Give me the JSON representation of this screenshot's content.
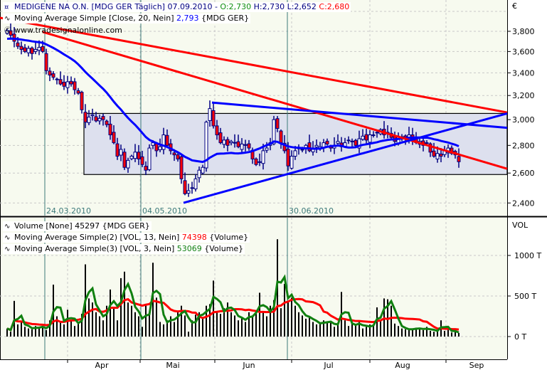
{
  "colors": {
    "background": "#f7faef",
    "up_body": "#ffffff",
    "down_body": "#ff0000",
    "candle_outline": "#000080",
    "ma20": "#0000ff",
    "trend_red": "#ff0000",
    "trend_blue": "#0000ff",
    "vol_ma13": "#ff0000",
    "vol_ma3": "#108010",
    "range_box": "#dde0ee",
    "marker_line": "#3d7a7a"
  },
  "header": {
    "symbol": "MEDIGENE NA O.N. [MDG GER  Täglich]",
    "date": "07.09.2010 -",
    "open": "O:2,730",
    "high": "H:2,730",
    "low": "L:2,652",
    "close": "C:2,680",
    "ma_label": "Moving Average Simple [Close, 20, Nein]",
    "ma_value": "2,793",
    "ma_suffix": "{MDG GER}",
    "watermark": "www.tradesignalonline.com"
  },
  "volume_legend": {
    "vol_label": "Volume [None] 45297 {MDG GER}",
    "ma13_label": "Moving Average Simple(2) [VOL, 13, Nein]",
    "ma13_value": "74398",
    "ma13_suffix": "{Volume}",
    "ma3_label": "Moving Average Simple(3) [VOL, 3, Nein]",
    "ma3_value": "53069",
    "ma3_suffix": "{Volume}"
  },
  "chart_data": [
    {
      "type": "candlestick",
      "title": "MEDIGENE NA O.N.",
      "ylabel": "€",
      "yscale": "log",
      "ylim": [
        2330,
        3960
      ],
      "yticks": [
        "3,800",
        "3,600",
        "3,400",
        "3,200",
        "3,000",
        "2,800",
        "2,600",
        "2,400"
      ],
      "ytick_values": [
        3800,
        3600,
        3400,
        3200,
        3000,
        2800,
        2600,
        2400
      ],
      "grid": true,
      "marker_dates": [
        "24.03.2010",
        "04.05.2010",
        "30.06.2010"
      ],
      "close": [
        3810,
        3760,
        3700,
        3650,
        3620,
        3600,
        3630,
        3580,
        3620,
        3640,
        3600,
        3420,
        3380,
        3360,
        3340,
        3300,
        3280,
        3320,
        3300,
        3250,
        3220,
        3080,
        2980,
        3020,
        3040,
        2990,
        3010,
        3000,
        2960,
        2880,
        2820,
        2720,
        2770,
        2640,
        2690,
        2720,
        2750,
        2700,
        2660,
        2620,
        2780,
        2820,
        2760,
        2790,
        2880,
        2800,
        2760,
        2730,
        2700,
        2560,
        2460,
        2480,
        2500,
        2560,
        2620,
        2640,
        2980,
        3090,
        2950,
        2880,
        2820,
        2840,
        2800,
        2830,
        2820,
        2790,
        2810,
        2800,
        2780,
        2700,
        2660,
        2680,
        2760,
        2780,
        2820,
        3000,
        2930,
        2820,
        2760,
        2650,
        2720,
        2760,
        2780,
        2770,
        2800,
        2760,
        2780,
        2800,
        2790,
        2820,
        2810,
        2780,
        2800,
        2830,
        2790,
        2820,
        2840,
        2830,
        2800,
        2850,
        2870,
        2840,
        2880,
        2880,
        2900,
        2920,
        2880,
        2900,
        2860,
        2830,
        2870,
        2860,
        2850,
        2880,
        2840,
        2820,
        2830,
        2800,
        2820,
        2750,
        2720,
        2740,
        2720,
        2760,
        2780,
        2740,
        2730,
        2680
      ],
      "ma20_last": 2793,
      "trendlines": [
        {
          "color": "red",
          "from_price": 3940,
          "to_price": 3058
        },
        {
          "color": "red",
          "from_price": 3793,
          "to_price": 2630
        },
        {
          "color": "blue",
          "from_price": 3140,
          "to_price": 2935
        },
        {
          "color": "blue",
          "from_price": 2401,
          "to_price": 3050
        }
      ],
      "range_box": {
        "top": 3050,
        "bottom": 2590
      }
    },
    {
      "type": "bar",
      "ylabel": "VOL",
      "yticks": [
        "1000 T",
        "500 T",
        "0 T"
      ],
      "ytick_values": [
        1000,
        500,
        0
      ],
      "unit": "T",
      "xticks": [
        "Apr",
        "Mai",
        "Jun",
        "Jul",
        "Aug",
        "Sep"
      ],
      "volume": [
        100,
        60,
        440,
        150,
        180,
        120,
        100,
        90,
        130,
        110,
        120,
        80,
        200,
        640,
        250,
        180,
        150,
        330,
        200,
        130,
        170,
        280,
        890,
        470,
        420,
        300,
        250,
        200,
        380,
        580,
        350,
        200,
        720,
        800,
        420,
        380,
        300,
        250,
        120,
        400,
        300,
        910,
        480,
        180,
        150,
        200,
        250,
        180,
        300,
        380,
        260,
        60,
        200,
        270,
        300,
        240,
        380,
        400,
        690,
        300,
        280,
        350,
        420,
        300,
        260,
        200,
        240,
        180,
        300,
        260,
        320,
        540,
        300,
        250,
        380,
        450,
        1200,
        350,
        650,
        420,
        480,
        380,
        300,
        260,
        220,
        250,
        180,
        150,
        160,
        200,
        170,
        180,
        120,
        150,
        550,
        200,
        130,
        160,
        140,
        180,
        100,
        120,
        150,
        140,
        360,
        200,
        470,
        460,
        380,
        160,
        130,
        100,
        90,
        80,
        100,
        110,
        90,
        80,
        120,
        70,
        60,
        80,
        200,
        70,
        90,
        50,
        60,
        45
      ],
      "series": [
        {
          "name": "Moving Average Simple(2) [VOL, 13, Nein]",
          "period": 13
        },
        {
          "name": "Moving Average Simple(3) [VOL, 3, Nein]",
          "period": 3
        }
      ]
    }
  ]
}
